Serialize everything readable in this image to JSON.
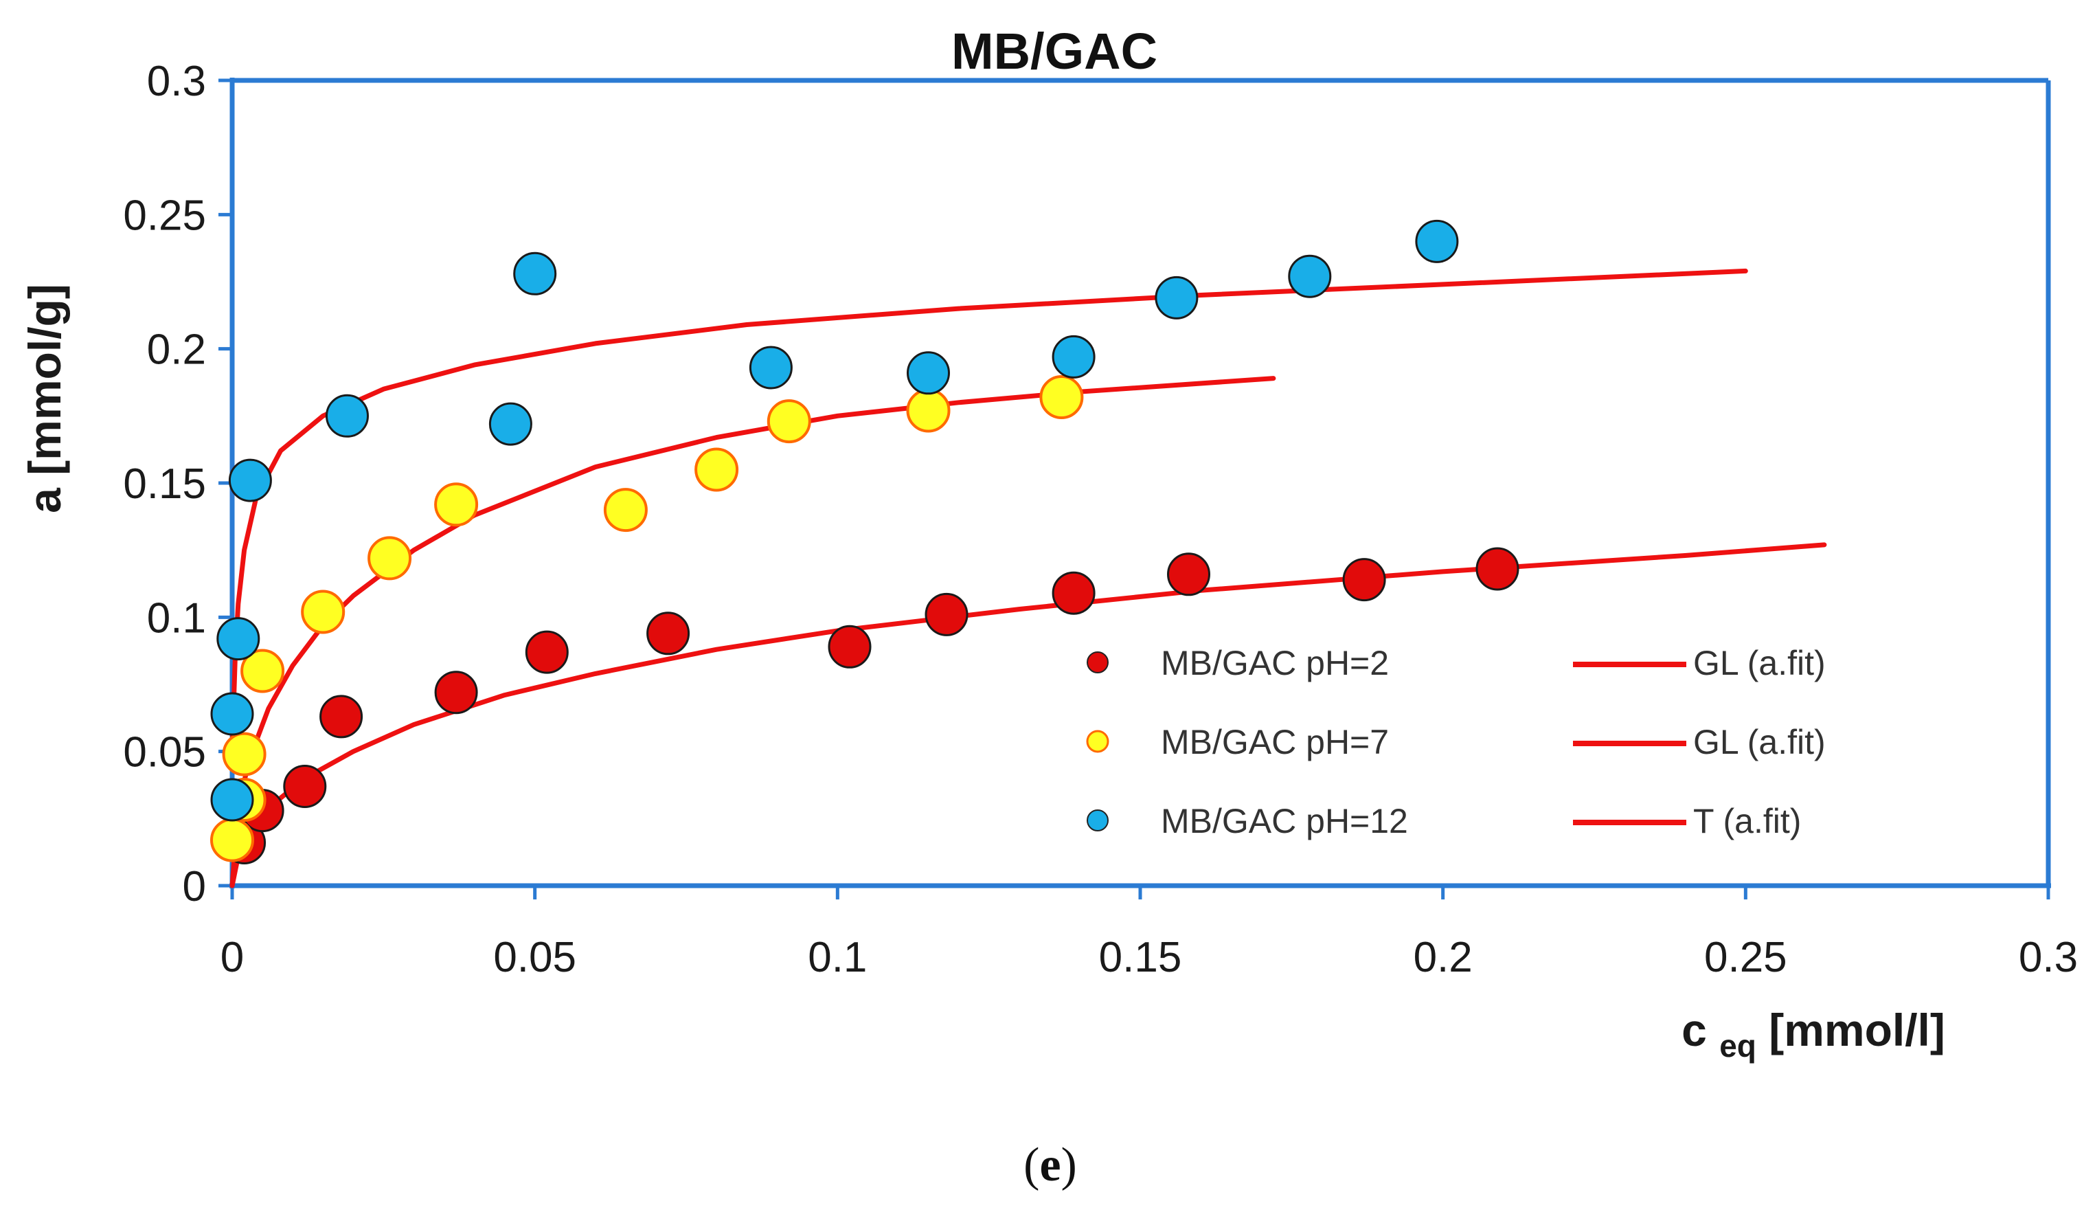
{
  "chart_data": {
    "type": "scatter",
    "title": "MB/GAC",
    "xlabel_main": "c",
    "xlabel_sub": "eq",
    "xlabel_unit": " [mmol/l]",
    "ylabel": "a [mmol/g]",
    "xlim": [
      0,
      0.3
    ],
    "ylim": [
      0,
      0.3
    ],
    "xticks": [
      0,
      0.05,
      0.1,
      0.15,
      0.2,
      0.25,
      0.3
    ],
    "yticks": [
      0,
      0.05,
      0.1,
      0.15,
      0.2,
      0.25,
      0.3
    ],
    "xtick_labels": [
      "0",
      "0.05",
      "0.1",
      "0.15",
      "0.2",
      "0.25",
      "0.3"
    ],
    "ytick_labels": [
      "0",
      "0.05",
      "0.1",
      "0.15",
      "0.2",
      "0.25",
      "0.3"
    ],
    "grid": false,
    "legend_position": "bottom-right",
    "series": [
      {
        "name": "MB/GAC pH=2",
        "kind": "points",
        "color": "#e10b0b",
        "x": [
          0.002,
          0.005,
          0.012,
          0.018,
          0.037,
          0.052,
          0.072,
          0.102,
          0.118,
          0.139,
          0.158,
          0.187,
          0.209
        ],
        "y": [
          0.016,
          0.028,
          0.037,
          0.063,
          0.072,
          0.087,
          0.094,
          0.089,
          0.101,
          0.109,
          0.116,
          0.114,
          0.118
        ]
      },
      {
        "name": "MB/GAC pH=7",
        "kind": "points",
        "color": "#ffff22",
        "x": [
          0.0,
          0.002,
          0.002,
          0.005,
          0.015,
          0.026,
          0.037,
          0.065,
          0.08,
          0.092,
          0.115,
          0.137
        ],
        "y": [
          0.017,
          0.032,
          0.049,
          0.08,
          0.102,
          0.122,
          0.142,
          0.14,
          0.155,
          0.173,
          0.177,
          0.182
        ]
      },
      {
        "name": "MB/GAC pH=12",
        "kind": "points",
        "color": "#19aee8",
        "x": [
          0.0,
          0.0,
          0.001,
          0.003,
          0.019,
          0.046,
          0.05,
          0.089,
          0.115,
          0.139,
          0.156,
          0.178,
          0.199
        ],
        "y": [
          0.032,
          0.064,
          0.092,
          0.151,
          0.175,
          0.172,
          0.228,
          0.193,
          0.191,
          0.197,
          0.219,
          0.227,
          0.24
        ]
      },
      {
        "name": "GL (a.fit)",
        "kind": "line",
        "color": "#ee1111",
        "x": [
          0.0,
          0.001,
          0.003,
          0.006,
          0.012,
          0.02,
          0.03,
          0.045,
          0.06,
          0.08,
          0.1,
          0.13,
          0.16,
          0.2,
          0.24,
          0.263
        ],
        "y": [
          0.0,
          0.011,
          0.02,
          0.029,
          0.04,
          0.05,
          0.06,
          0.071,
          0.079,
          0.088,
          0.095,
          0.103,
          0.11,
          0.117,
          0.123,
          0.127
        ]
      },
      {
        "name": "GL (a.fit)",
        "kind": "line",
        "color": "#ee1111",
        "x": [
          0.0,
          0.001,
          0.003,
          0.006,
          0.01,
          0.015,
          0.02,
          0.03,
          0.04,
          0.06,
          0.08,
          0.1,
          0.12,
          0.14,
          0.172
        ],
        "y": [
          0.0,
          0.03,
          0.048,
          0.066,
          0.082,
          0.097,
          0.108,
          0.125,
          0.138,
          0.156,
          0.167,
          0.175,
          0.18,
          0.184,
          0.189
        ]
      },
      {
        "name": "T (a.fit)",
        "kind": "line",
        "color": "#ee1111",
        "x": [
          0.0,
          0.0005,
          0.001,
          0.002,
          0.004,
          0.008,
          0.015,
          0.025,
          0.04,
          0.06,
          0.085,
          0.12,
          0.16,
          0.2,
          0.25
        ],
        "y": [
          0.05,
          0.085,
          0.105,
          0.125,
          0.145,
          0.162,
          0.175,
          0.185,
          0.194,
          0.202,
          0.209,
          0.215,
          0.22,
          0.224,
          0.229
        ]
      }
    ]
  },
  "caption": {
    "open": "(",
    "letter": "e",
    "close": ")"
  }
}
